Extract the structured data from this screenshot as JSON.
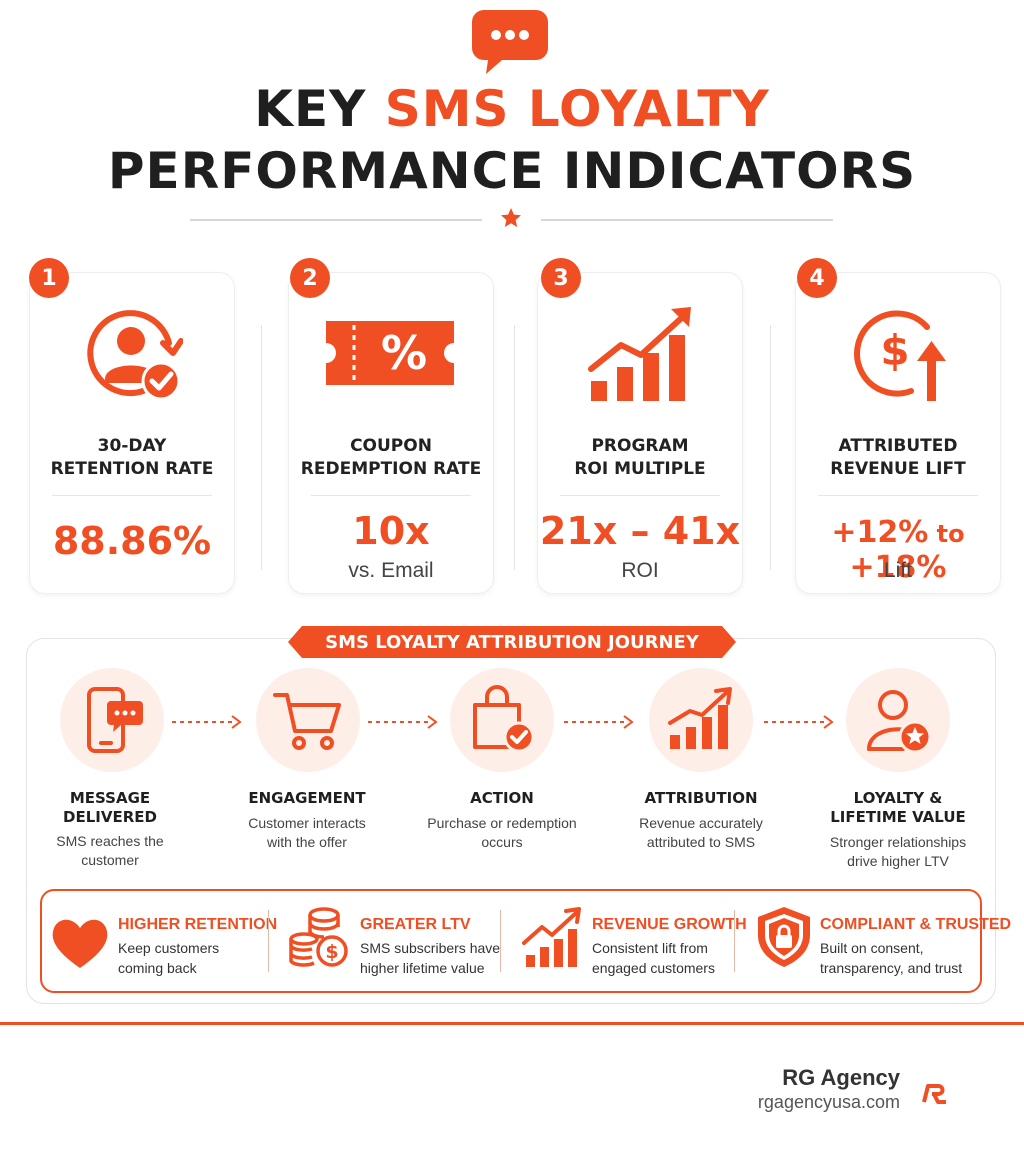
{
  "colors": {
    "accent": "#f04e23",
    "text": "#1f1f1f",
    "tint": "#fdeee7"
  },
  "header": {
    "icon": "chat-bubble-icon",
    "title_part1": "KEY ",
    "title_accent": "SMS LOYALTY",
    "title_line2": "PERFORMANCE INDICATORS",
    "divider_icon": "star-icon"
  },
  "kpis": [
    {
      "num": "1",
      "icon": "user-retention-icon",
      "label_line1": "30-DAY",
      "label_line2": "RETENTION RATE",
      "value": "88.86%",
      "sub": ""
    },
    {
      "num": "2",
      "icon": "coupon-percent-icon",
      "label_line1": "COUPON",
      "label_line2": "REDEMPTION RATE",
      "value": "10x",
      "sub": "vs. Email"
    },
    {
      "num": "3",
      "icon": "growth-chart-icon",
      "label_line1": "PROGRAM",
      "label_line2": "ROI MULTIPLE",
      "value": "21x – 41x",
      "sub": "ROI"
    },
    {
      "num": "4",
      "icon": "dollar-up-icon",
      "label_line1": "ATTRIBUTED",
      "label_line2": "REVENUE LIFT",
      "value_a": "+12%",
      "value_to": " to ",
      "value_b": "+18%",
      "sub": "Lift"
    }
  ],
  "journey": {
    "banner": "SMS LOYALTY ATTRIBUTION JOURNEY",
    "steps": [
      {
        "icon": "phone-message-icon",
        "title_line1": "MESSAGE",
        "title_line2": "DELIVERED",
        "desc_line1": "SMS reaches the",
        "desc_line2": "customer"
      },
      {
        "icon": "shopping-cart-icon",
        "title_line1": "ENGAGEMENT",
        "title_line2": "",
        "desc_line1": "Customer interacts",
        "desc_line2": "with the offer"
      },
      {
        "icon": "shopping-bag-check-icon",
        "title_line1": "ACTION",
        "title_line2": "",
        "desc_line1": "Purchase or redemption",
        "desc_line2": "occurs"
      },
      {
        "icon": "bar-chart-icon",
        "title_line1": "ATTRIBUTION",
        "title_line2": "",
        "desc_line1": "Revenue accurately",
        "desc_line2": "attributed to SMS"
      },
      {
        "icon": "user-star-icon",
        "title_line1": "LOYALTY &",
        "title_line2": "LIFETIME VALUE",
        "desc_line1": "Stronger relationships",
        "desc_line2": "drive higher LTV"
      }
    ]
  },
  "benefits": [
    {
      "icon": "heart-icon",
      "title": "HIGHER RETENTION",
      "desc_line1": "Keep customers",
      "desc_line2": "coming back"
    },
    {
      "icon": "coins-icon",
      "title": "GREATER LTV",
      "desc_line1": "SMS subscribers have",
      "desc_line2": "higher lifetime value"
    },
    {
      "icon": "revenue-growth-icon",
      "title": "REVENUE GROWTH",
      "desc_line1": "Consistent lift from",
      "desc_line2": "engaged customers"
    },
    {
      "icon": "shield-lock-icon",
      "title": "COMPLIANT & TRUSTED",
      "desc_line1": "Built on consent,",
      "desc_line2": "transparency, and trust"
    }
  ],
  "footer": {
    "brand": "RG Agency",
    "url": "rgagencyusa.com",
    "logo": "rg-logo-icon"
  }
}
